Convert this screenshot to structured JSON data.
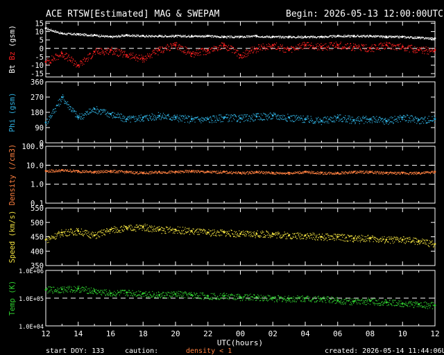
{
  "header": {
    "title": "ACE RTSW[Estimated] MAG & SWEPAM",
    "begin": "Begin: 2026-05-13 12:00:00UTC"
  },
  "footer": {
    "start_doy": "start DOY: 133",
    "caution": "caution:",
    "density_note": "density < 1",
    "created": "created: 2026-05-14 11:44:06UTC"
  },
  "colors": {
    "bt": "#ffffff",
    "bz": "#ff2020",
    "phi": "#30b0e0",
    "density": "#ff8040",
    "speed": "#f0e040",
    "temp": "#30d030",
    "caution": "#ff8040",
    "axes": "#ffffff"
  },
  "chart_data": [
    {
      "type": "scatter",
      "id": "mag",
      "ylabel_parts": [
        "Bt",
        "Bz",
        "(gsm)"
      ],
      "yticks": [
        -15,
        -10,
        -5,
        0,
        5,
        10,
        15
      ],
      "ylim": [
        -17,
        16
      ],
      "dashed": [
        0
      ],
      "x_label": "UTC(hours)",
      "x_ticks": [
        "12",
        "14",
        "16",
        "18",
        "20",
        "22",
        "00",
        "02",
        "04",
        "06",
        "08",
        "10",
        "12"
      ],
      "series": [
        {
          "name": "Bt",
          "x": [
            0,
            1,
            2,
            3,
            4,
            5,
            6,
            7,
            8,
            9,
            10,
            11,
            12,
            13,
            14,
            15,
            16,
            17,
            18,
            19,
            20,
            21,
            22,
            23,
            24
          ],
          "values": [
            12,
            9,
            8.5,
            8,
            7,
            8,
            7.5,
            7.5,
            7.5,
            7.5,
            7.5,
            7,
            7,
            7.5,
            7,
            7,
            7,
            7,
            7.5,
            7.5,
            7.5,
            7,
            7,
            6.5,
            6
          ]
        },
        {
          "name": "Bz",
          "x": [
            0,
            1,
            2,
            3,
            4,
            5,
            6,
            7,
            8,
            9,
            10,
            11,
            12,
            13,
            14,
            15,
            16,
            17,
            18,
            19,
            20,
            21,
            22,
            23,
            24
          ],
          "values": [
            -8,
            -3,
            -10,
            -2,
            -1,
            -4,
            -6,
            -1,
            2,
            -3,
            -1,
            2,
            -4,
            0,
            2,
            -1,
            2,
            1,
            2,
            1,
            0,
            2,
            1,
            -1,
            -1
          ]
        }
      ]
    },
    {
      "type": "scatter",
      "id": "phi",
      "ylabel": "Phi (gsm)",
      "yticks": [
        0,
        90,
        180,
        270,
        360
      ],
      "ylim": [
        0,
        360
      ],
      "series": [
        {
          "name": "Phi",
          "x": [
            0,
            1,
            2,
            3,
            4,
            5,
            6,
            7,
            8,
            9,
            10,
            11,
            12,
            13,
            14,
            15,
            16,
            17,
            18,
            19,
            20,
            21,
            22,
            23,
            24
          ],
          "values": [
            120,
            270,
            150,
            200,
            170,
            140,
            150,
            160,
            150,
            140,
            140,
            150,
            145,
            155,
            160,
            150,
            140,
            130,
            150,
            135,
            140,
            130,
            150,
            135,
            140
          ]
        }
      ]
    },
    {
      "type": "scatter",
      "id": "density",
      "ylabel": "Density (/cm3)",
      "yscale": "log",
      "ytick_labels": [
        "0.1",
        "1.0",
        "10.0",
        "100.0"
      ],
      "yticks": [
        0.1,
        1,
        10,
        100
      ],
      "ylim": [
        0.1,
        100
      ],
      "dashed": [
        1,
        10
      ],
      "series": [
        {
          "name": "Density",
          "x": [
            0,
            1,
            2,
            3,
            4,
            5,
            6,
            7,
            8,
            9,
            10,
            11,
            12,
            13,
            14,
            15,
            16,
            17,
            18,
            19,
            20,
            21,
            22,
            23,
            24
          ],
          "values": [
            5,
            5.5,
            5,
            4.5,
            5,
            4.5,
            4,
            4.5,
            4.5,
            5,
            4.5,
            4.5,
            4,
            4.5,
            4,
            4,
            4.5,
            4,
            4,
            4.5,
            4.5,
            4,
            4,
            4,
            4.5
          ]
        }
      ]
    },
    {
      "type": "scatter",
      "id": "speed",
      "ylabel": "Speed (km/s)",
      "yticks": [
        350,
        400,
        450,
        500,
        550
      ],
      "ylim": [
        350,
        550
      ],
      "series": [
        {
          "name": "Speed",
          "x": [
            0,
            1,
            2,
            3,
            4,
            5,
            6,
            7,
            8,
            9,
            10,
            11,
            12,
            13,
            14,
            15,
            16,
            17,
            18,
            19,
            20,
            21,
            22,
            23,
            24
          ],
          "values": [
            440,
            465,
            470,
            455,
            475,
            480,
            485,
            475,
            475,
            470,
            465,
            465,
            460,
            460,
            460,
            455,
            455,
            450,
            450,
            445,
            445,
            440,
            440,
            435,
            425
          ]
        }
      ]
    },
    {
      "type": "scatter",
      "id": "temp",
      "ylabel": "Temp (K)",
      "yscale": "log",
      "ytick_labels": [
        "1.0E+04",
        "1.0E+05",
        "1.0E+06"
      ],
      "yticks": [
        10000,
        100000,
        1000000
      ],
      "ylim": [
        10000,
        1000000
      ],
      "dashed": [
        100000
      ],
      "series": [
        {
          "name": "Temp",
          "x": [
            0,
            1,
            2,
            3,
            4,
            5,
            6,
            7,
            8,
            9,
            10,
            11,
            12,
            13,
            14,
            15,
            16,
            17,
            18,
            19,
            20,
            21,
            22,
            23,
            24
          ],
          "values": [
            200000,
            210000,
            220000,
            180000,
            150000,
            160000,
            150000,
            130000,
            140000,
            130000,
            120000,
            120000,
            110000,
            110000,
            100000,
            95000,
            100000,
            95000,
            85000,
            75000,
            80000,
            70000,
            65000,
            60000,
            55000
          ]
        }
      ]
    }
  ]
}
